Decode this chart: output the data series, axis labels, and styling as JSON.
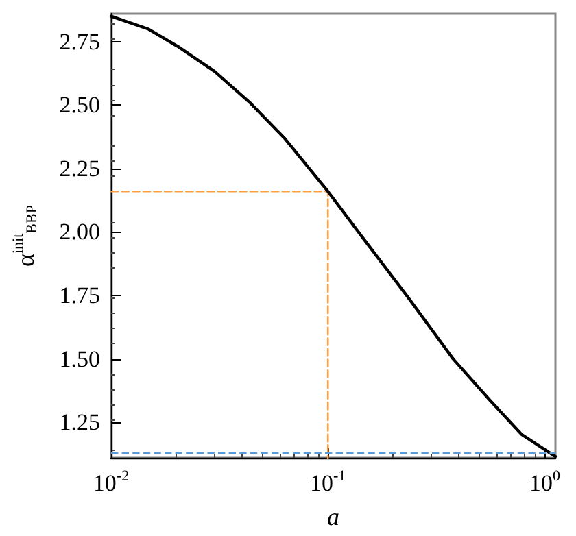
{
  "chart_data": {
    "type": "line",
    "xlabel": "a",
    "ylabel": "α$^{init}$$_{BBP}$",
    "log": "x",
    "grid": false,
    "marker": "none",
    "xlim": [
      0.01,
      1.12
    ],
    "xticks": [
      {
        "value": 0.01,
        "label": "10$^{-2}$"
      },
      {
        "value": 0.1,
        "label": "10$^{-1}$"
      },
      {
        "value": 1,
        "label": "10$^{0}$"
      }
    ],
    "ylim": [
      1.11,
      2.86
    ],
    "yticks": [
      {
        "value": 1.25,
        "label": "1.25"
      },
      {
        "value": 1.5,
        "label": "1.50"
      },
      {
        "value": 1.75,
        "label": "1.75"
      },
      {
        "value": 2,
        "label": "2.00"
      },
      {
        "value": 2.25,
        "label": "2.25"
      },
      {
        "value": 2.5,
        "label": "2.50"
      },
      {
        "value": 2.75,
        "label": "2.75"
      }
    ],
    "series": [
      {
        "color": "#000000",
        "line_style": "solid",
        "x": [
          0.01,
          0.0148,
          0.0204,
          0.03,
          0.044,
          0.063,
          0.1,
          0.144,
          0.233,
          0.378,
          0.557,
          0.781,
          1.12
        ],
        "values": [
          2.85,
          2.8,
          2.73,
          2.633,
          2.507,
          2.37,
          2.16,
          1.98,
          1.745,
          1.5,
          1.338,
          1.203,
          1.115
        ]
      },
      {
        "color": "#ff9f40",
        "line_style": "dashed",
        "x": [
          0.01,
          0.1,
          0.1
        ],
        "values": [
          2.16,
          2.16,
          1.11
        ]
      }
    ],
    "ref_lines": [
      {
        "axis": "y",
        "value": 1.13,
        "color": "#5b9bd5",
        "line_style": "dashed"
      }
    ]
  }
}
